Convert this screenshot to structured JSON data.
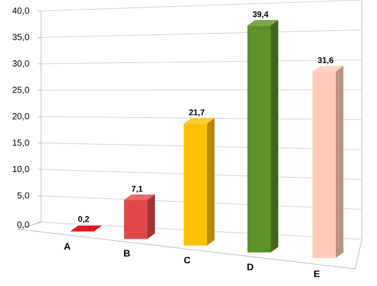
{
  "chart_data": {
    "type": "bar",
    "style": "3d-columns",
    "categories": [
      "A",
      "B",
      "C",
      "D",
      "E"
    ],
    "values": [
      0.2,
      7.1,
      21.7,
      39.4,
      31.6
    ],
    "value_labels": [
      "0,2",
      "7,1",
      "21,7",
      "39,4",
      "31,6"
    ],
    "y_ticks": [
      "0,0",
      "5,0",
      "10,0",
      "15,0",
      "20,0",
      "25,0",
      "30,0",
      "35,0",
      "40,0"
    ],
    "ylim": [
      0,
      40
    ],
    "grid": true,
    "legend": "none",
    "title": "",
    "xlabel": "",
    "ylabel": "",
    "bar_colors": [
      "#e8141e",
      "#e04848",
      "#ffc000",
      "#5e9128",
      "#ffcbb8"
    ]
  }
}
